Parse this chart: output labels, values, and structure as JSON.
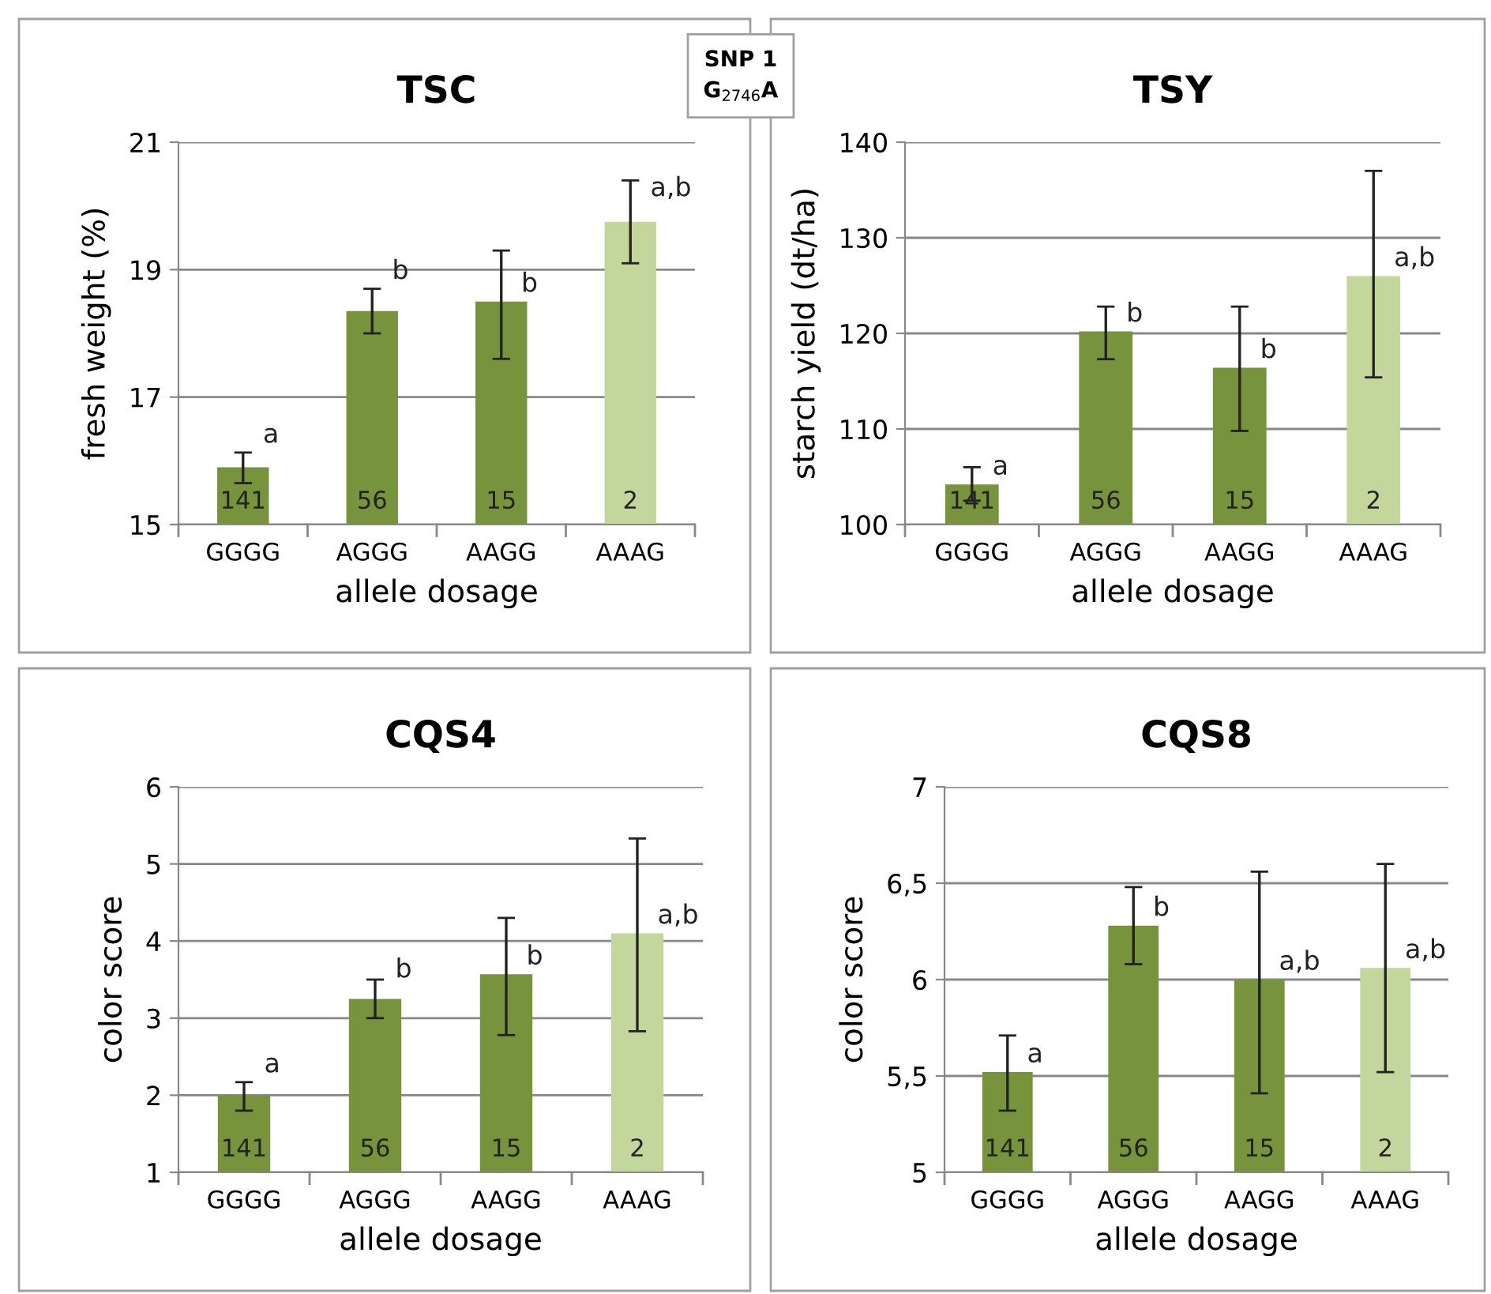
{
  "chart_data": [
    {
      "type": "bar",
      "title": "TSC",
      "xlabel": "allele dosage",
      "ylabel": "fresh weight (%)",
      "categories": [
        "GGGG",
        "AGGG",
        "AAGG",
        "AAAG"
      ],
      "values": [
        15.9,
        18.35,
        18.5,
        19.75
      ],
      "colors": [
        "#77933c",
        "#77933c",
        "#77933c",
        "#c3d69b"
      ],
      "errors": [
        [
          15.65,
          16.13
        ],
        [
          18.0,
          18.7
        ],
        [
          17.6,
          19.3
        ],
        [
          19.1,
          20.4
        ]
      ],
      "ylim": [
        15,
        21
      ],
      "yticks": [
        15,
        17,
        19,
        21
      ],
      "grid": "y",
      "annotations": [
        "SNP 1\nG$_{2746}$A",
        "141",
        "56",
        "15",
        "2",
        {
          "text": "a",
          "x": "GGGG",
          "y": 16.13
        },
        {
          "text": "b",
          "x": "AGGG",
          "y": 18.7
        },
        {
          "text": "b",
          "x": "AAGG",
          "y": 18.5
        },
        {
          "text": "a,b",
          "x": "AAAG",
          "y": 20.0
        }
      ]
    },
    {
      "type": "bar",
      "title": "TSY",
      "xlabel": "allele dosage",
      "ylabel": "starch yield (dt/ha)",
      "categories": [
        "GGGG",
        "AGGG",
        "AAGG",
        "AAAG"
      ],
      "values": [
        104.2,
        120.2,
        116.4,
        126
      ],
      "colors": [
        "#77933c",
        "#77933c",
        "#77933c",
        "#c3d69b"
      ],
      "errors": [
        [
          102.5,
          106
        ],
        [
          117.3,
          122.8
        ],
        [
          109.8,
          122.8
        ],
        [
          115.4,
          137
        ]
      ],
      "ylim": [
        100,
        140
      ],
      "yticks": [
        100,
        110,
        120,
        130,
        140
      ],
      "grid": "y",
      "annotations": [
        "141",
        "56",
        "15",
        "2",
        {
          "text": "a",
          "x": "GGGG",
          "y": 104.2
        },
        {
          "text": "b",
          "x": "AGGG",
          "y": 120.2
        },
        {
          "text": "b",
          "x": "AAGG",
          "y": 116.4
        },
        {
          "text": "a,b",
          "x": "AAAG",
          "y": 126
        }
      ]
    },
    {
      "type": "bar",
      "title": "CQS4",
      "xlabel": "allele dosage",
      "ylabel": "color score",
      "categories": [
        "GGGG",
        "AGGG",
        "AAGG",
        "AAAG"
      ],
      "values": [
        2.0,
        3.25,
        3.57,
        4.1
      ],
      "colors": [
        "#77933c",
        "#77933c",
        "#77933c",
        "#c3d69b"
      ],
      "errors": [
        [
          1.8,
          2.17
        ],
        [
          3.0,
          3.5
        ],
        [
          2.78,
          4.3
        ],
        [
          2.83,
          5.33
        ]
      ],
      "ylim": [
        1,
        6
      ],
      "yticks": [
        1,
        2,
        3,
        4,
        5,
        6
      ],
      "grid": "y",
      "annotations": [
        "141",
        "56",
        "15",
        "2",
        {
          "text": "a",
          "x": "GGGG",
          "y": 2.17
        },
        {
          "text": "b",
          "x": "AGGG",
          "y": 3.4
        },
        {
          "text": "b",
          "x": "AAGG",
          "y": 3.57
        },
        {
          "text": "a,b",
          "x": "AAAG",
          "y": 4.1
        }
      ]
    },
    {
      "type": "bar",
      "title": "CQS8",
      "xlabel": "allele dosage",
      "ylabel": "color score",
      "categories": [
        "GGGG",
        "AGGG",
        "AAGG",
        "AAAG"
      ],
      "values": [
        5.52,
        6.28,
        6.0,
        6.06
      ],
      "colors": [
        "#77933c",
        "#77933c",
        "#77933c",
        "#c3d69b"
      ],
      "errors": [
        [
          5.32,
          5.71
        ],
        [
          6.08,
          6.48
        ],
        [
          5.41,
          6.56
        ],
        [
          5.52,
          6.6
        ]
      ],
      "ylim": [
        5,
        7
      ],
      "yticks": [
        5,
        {
          "value": 5.5,
          "label": "5,5"
        },
        6,
        {
          "value": 6.5,
          "label": "6,5"
        },
        7
      ],
      "grid": "y",
      "annotations": [
        "141",
        "56",
        "15",
        "2",
        {
          "text": "a",
          "x": "GGGG",
          "y": 5.52
        },
        {
          "text": "b",
          "x": "AGGG",
          "y": 6.28
        },
        {
          "text": "a,b",
          "x": "AAGG",
          "y": 6.0
        },
        {
          "text": "a,b",
          "x": "AAAG",
          "y": 6.06
        }
      ]
    }
  ]
}
